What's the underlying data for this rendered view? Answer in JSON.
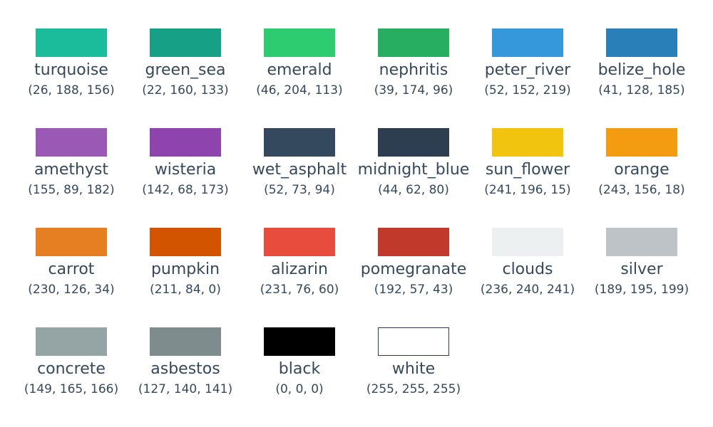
{
  "swatches": [
    {
      "name": "turquoise",
      "rgb": "(26, 188, 156)",
      "color": "#1abc9c"
    },
    {
      "name": "green_sea",
      "rgb": "(22, 160, 133)",
      "color": "#16a085"
    },
    {
      "name": "emerald",
      "rgb": "(46, 204, 113)",
      "color": "#2ecc71"
    },
    {
      "name": "nephritis",
      "rgb": "(39, 174, 96)",
      "color": "#27ae60"
    },
    {
      "name": "peter_river",
      "rgb": "(52, 152, 219)",
      "color": "#3498db"
    },
    {
      "name": "belize_hole",
      "rgb": "(41, 128, 185)",
      "color": "#2980b9"
    },
    {
      "name": "amethyst",
      "rgb": "(155, 89, 182)",
      "color": "#9b59b6"
    },
    {
      "name": "wisteria",
      "rgb": "(142, 68, 173)",
      "color": "#8e44ad"
    },
    {
      "name": "wet_asphalt",
      "rgb": "(52, 73, 94)",
      "color": "#34495e"
    },
    {
      "name": "midnight_blue",
      "rgb": "(44, 62, 80)",
      "color": "#2c3e50"
    },
    {
      "name": "sun_flower",
      "rgb": "(241, 196, 15)",
      "color": "#f1c40f"
    },
    {
      "name": "orange",
      "rgb": "(243, 156, 18)",
      "color": "#f39c12"
    },
    {
      "name": "carrot",
      "rgb": "(230, 126, 34)",
      "color": "#e67e22"
    },
    {
      "name": "pumpkin",
      "rgb": "(211, 84, 0)",
      "color": "#d35400"
    },
    {
      "name": "alizarin",
      "rgb": "(231, 76, 60)",
      "color": "#e74c3c"
    },
    {
      "name": "pomegranate",
      "rgb": "(192, 57, 43)",
      "color": "#c0392b"
    },
    {
      "name": "clouds",
      "rgb": "(236, 240, 241)",
      "color": "#ecf0f1"
    },
    {
      "name": "silver",
      "rgb": "(189, 195, 199)",
      "color": "#bdc3c7"
    },
    {
      "name": "concrete",
      "rgb": "(149, 165, 166)",
      "color": "#95a5a6"
    },
    {
      "name": "asbestos",
      "rgb": "(127, 140, 141)",
      "color": "#7f8c8d"
    },
    {
      "name": "black",
      "rgb": "(0, 0, 0)",
      "color": "#000000"
    },
    {
      "name": "white",
      "rgb": "(255, 255, 255)",
      "color": "#ffffff",
      "outlined": true
    }
  ]
}
